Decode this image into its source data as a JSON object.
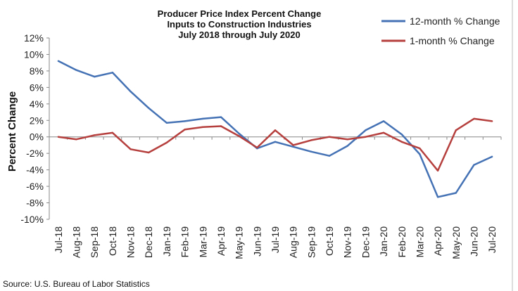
{
  "chart_data": {
    "type": "line",
    "title": [
      "Producer Price Index Percent Change",
      "Inputs to Construction Industries",
      "July 2018 through July 2020"
    ],
    "xlabel": "",
    "ylabel": "Percent Change",
    "ylim": [
      -10,
      12
    ],
    "ytick_step": 2,
    "grid": false,
    "legend_position": "top-right",
    "categories": [
      "Jul-18",
      "Aug-18",
      "Sep-18",
      "Oct-18",
      "Nov-18",
      "Dec-18",
      "Jan-19",
      "Feb-19",
      "Mar-19",
      "Apr-19",
      "May-19",
      "Jun-19",
      "Jul-19",
      "Aug-19",
      "Sep-19",
      "Oct-19",
      "Nov-19",
      "Dec-19",
      "Jan-20",
      "Feb-20",
      "Mar-20",
      "Apr-20",
      "May-20",
      "Jun-20",
      "Jul-20"
    ],
    "series": [
      {
        "name": "12-month % Change",
        "color": "#4472b4",
        "values": [
          9.2,
          8.1,
          7.3,
          7.8,
          5.5,
          3.5,
          1.7,
          1.9,
          2.2,
          2.4,
          0.4,
          -1.4,
          -0.6,
          -1.2,
          -1.8,
          -2.3,
          -1.1,
          0.8,
          1.9,
          0.3,
          -2.1,
          -7.3,
          -6.8,
          -3.4,
          -2.4
        ]
      },
      {
        "name": "1-month % Change",
        "color": "#b5403e",
        "values": [
          0.0,
          -0.3,
          0.2,
          0.5,
          -1.5,
          -1.9,
          -0.7,
          0.9,
          1.2,
          1.3,
          0.1,
          -1.3,
          0.8,
          -1.0,
          -0.4,
          0.0,
          -0.3,
          0.0,
          0.5,
          -0.6,
          -1.4,
          -4.1,
          0.8,
          2.2,
          1.9
        ]
      }
    ],
    "source": "Source: U.S. Bureau of Labor Statistics"
  }
}
